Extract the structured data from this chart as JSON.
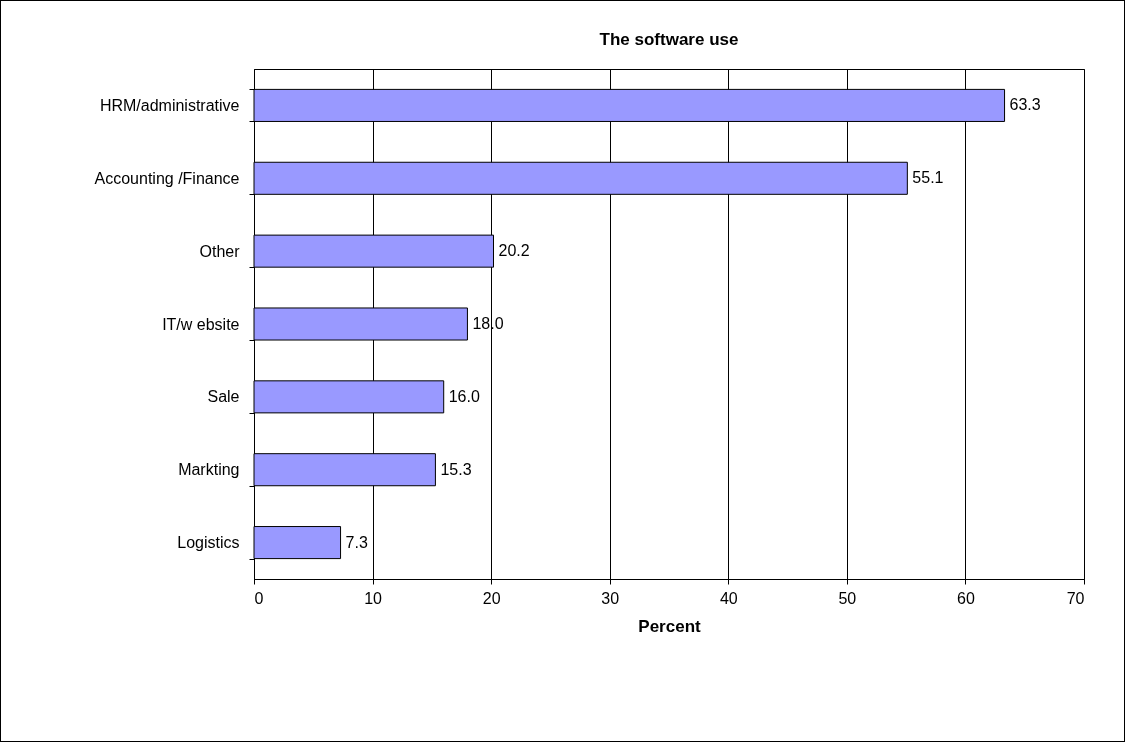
{
  "chart_data": {
    "type": "bar",
    "orientation": "horizontal",
    "title": "The software use",
    "xlabel": "Percent",
    "categories": [
      "HRM/administrative",
      "Accounting /Finance",
      "Other",
      "IT/w ebsite",
      "Sale",
      "Markting",
      "Logistics"
    ],
    "values": [
      63.3,
      55.1,
      20.2,
      18.0,
      16.0,
      15.3,
      7.3
    ],
    "value_labels": [
      "63.3",
      "55.1",
      "20.2",
      "18.0",
      "16.0",
      "15.3",
      "7.3"
    ],
    "color": "#9999ff",
    "xlim": [
      0,
      70
    ],
    "xticks": [
      0,
      10,
      20,
      30,
      40,
      50,
      60,
      70
    ],
    "grid": "x"
  }
}
